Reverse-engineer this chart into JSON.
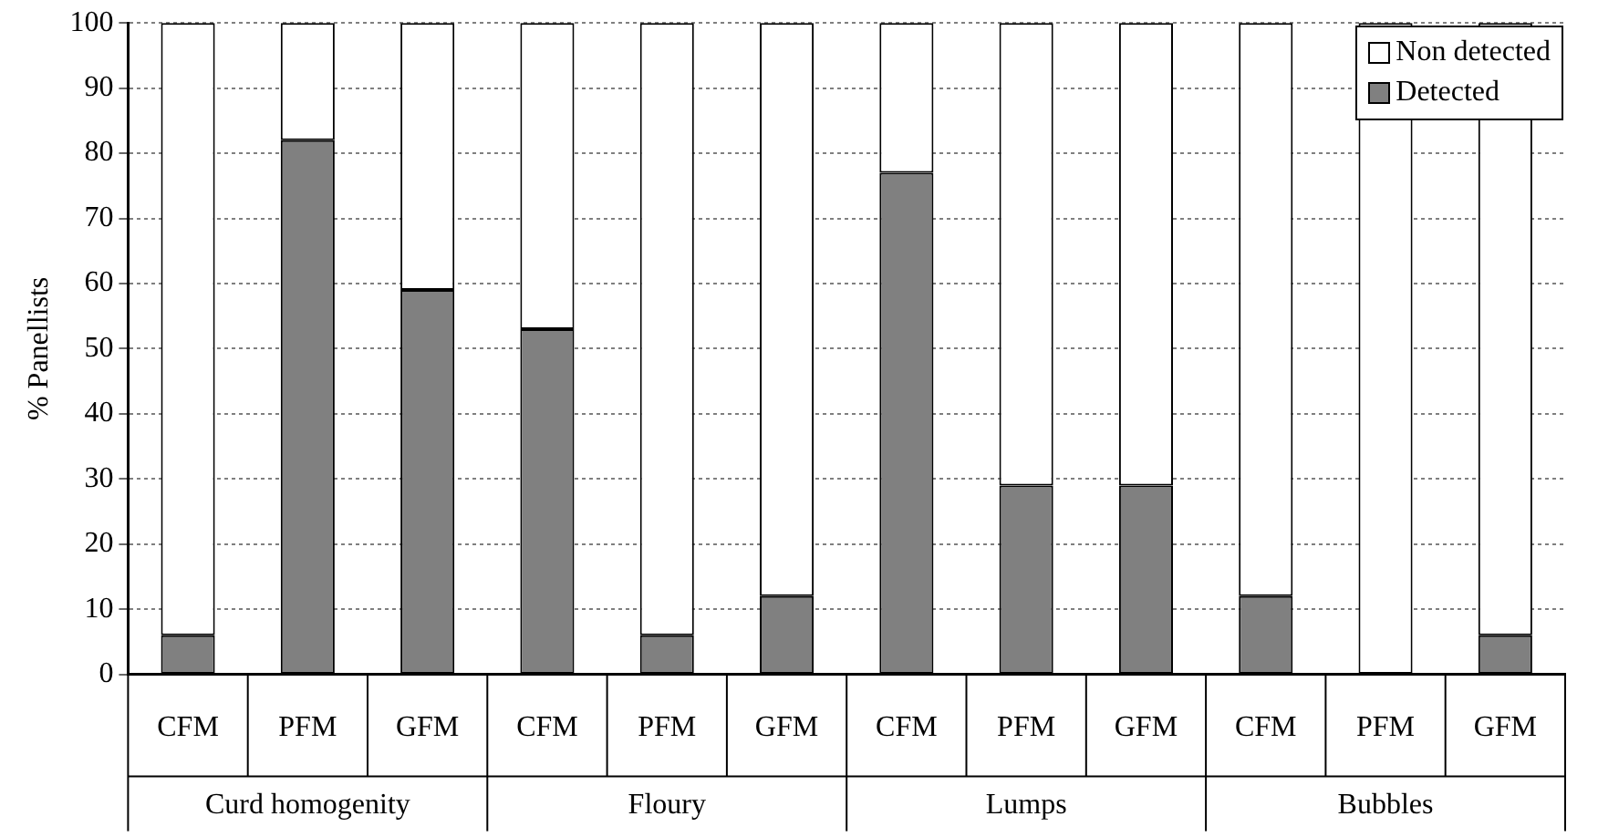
{
  "chart_data": {
    "type": "bar",
    "stacked": true,
    "ylabel": "% Panellists",
    "categories": [
      "CFM",
      "PFM",
      "GFM",
      "CFM",
      "PFM",
      "GFM",
      "CFM",
      "PFM",
      "GFM",
      "CFM",
      "PFM",
      "GFM"
    ],
    "series": [
      {
        "name": "Detected",
        "color": "#808080",
        "values": [
          6,
          82,
          59,
          53,
          6,
          12,
          77,
          29,
          29,
          12,
          0,
          6
        ]
      },
      {
        "name": "Non detected",
        "color": "#ffffff",
        "values": [
          94,
          18,
          41,
          47,
          94,
          88,
          23,
          71,
          71,
          88,
          100,
          94
        ]
      }
    ],
    "annotations": [
      "Curd homogenity",
      "Floury",
      "Lumps",
      "Bubbles"
    ],
    "ylim": [
      0,
      100
    ],
    "yticks": [
      0,
      10,
      20,
      30,
      40,
      50,
      60,
      70,
      80,
      90,
      100
    ],
    "grid": "y",
    "legend": "top right"
  }
}
